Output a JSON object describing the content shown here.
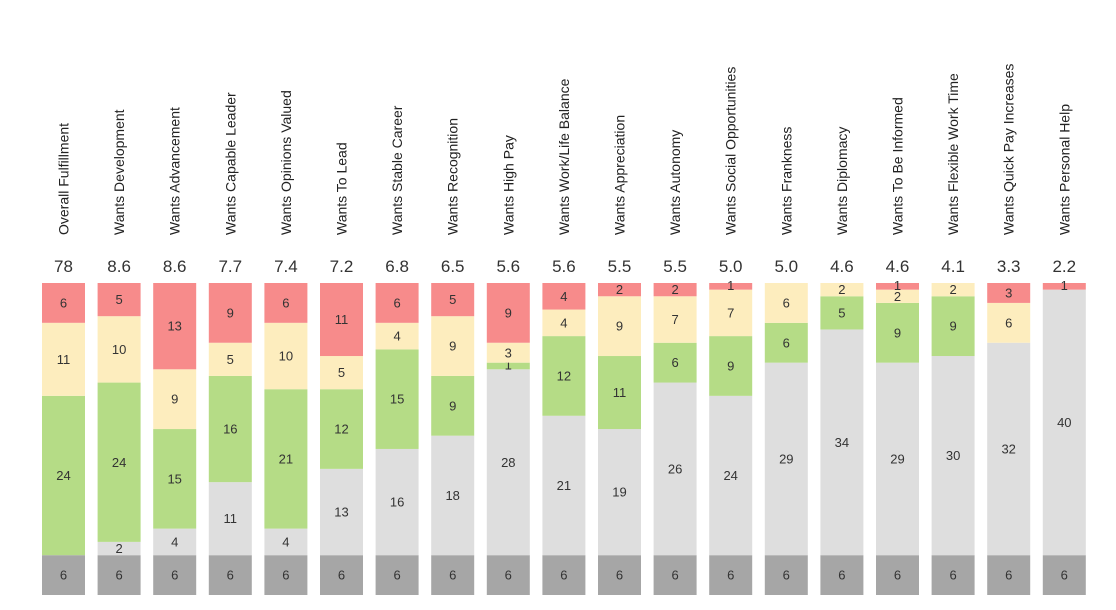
{
  "chart_data": {
    "type": "bar",
    "stacked": true,
    "categories": [
      "Overall Fulfillment",
      "Wants Development",
      "Wants Advancement",
      "Wants Capable Leader",
      "Wants Opinions Valued",
      "Wants To Lead",
      "Wants Stable Career",
      "Wants Recognition",
      "Wants High Pay",
      "Wants Work/Life Balance",
      "Wants Appreciation",
      "Wants Autonomy",
      "Wants Social Opportunities",
      "Wants Frankness",
      "Wants Diplomacy",
      "Wants To Be Informed",
      "Wants Flexible Work Time",
      "Wants Quick Pay Increases",
      "Wants Personal Help"
    ],
    "scores": [
      "78",
      "8.6",
      "8.6",
      "7.7",
      "7.4",
      "7.2",
      "6.8",
      "6.5",
      "5.6",
      "5.6",
      "5.5",
      "5.5",
      "5.0",
      "5.0",
      "4.6",
      "4.6",
      "4.1",
      "3.3",
      "2.2"
    ],
    "series": [
      {
        "color": "#a6a6a6",
        "values": [
          6,
          6,
          6,
          6,
          6,
          6,
          6,
          6,
          6,
          6,
          6,
          6,
          6,
          6,
          6,
          6,
          6,
          6,
          6
        ]
      },
      {
        "color": "#dedede",
        "values": [
          0,
          2,
          4,
          11,
          4,
          13,
          16,
          18,
          28,
          21,
          19,
          26,
          24,
          29,
          34,
          29,
          30,
          32,
          40
        ]
      },
      {
        "color": "#b5dc86",
        "values": [
          24,
          24,
          15,
          16,
          21,
          12,
          15,
          9,
          1,
          12,
          11,
          6,
          9,
          6,
          5,
          9,
          9,
          0,
          0
        ]
      },
      {
        "color": "#fdedbe",
        "values": [
          11,
          10,
          9,
          5,
          10,
          5,
          4,
          9,
          3,
          4,
          9,
          7,
          7,
          6,
          2,
          2,
          2,
          6,
          0
        ]
      },
      {
        "color": "#f78b8b",
        "values": [
          6,
          5,
          13,
          9,
          6,
          11,
          6,
          5,
          9,
          4,
          2,
          2,
          1,
          0,
          0,
          1,
          0,
          3,
          1
        ]
      }
    ]
  }
}
